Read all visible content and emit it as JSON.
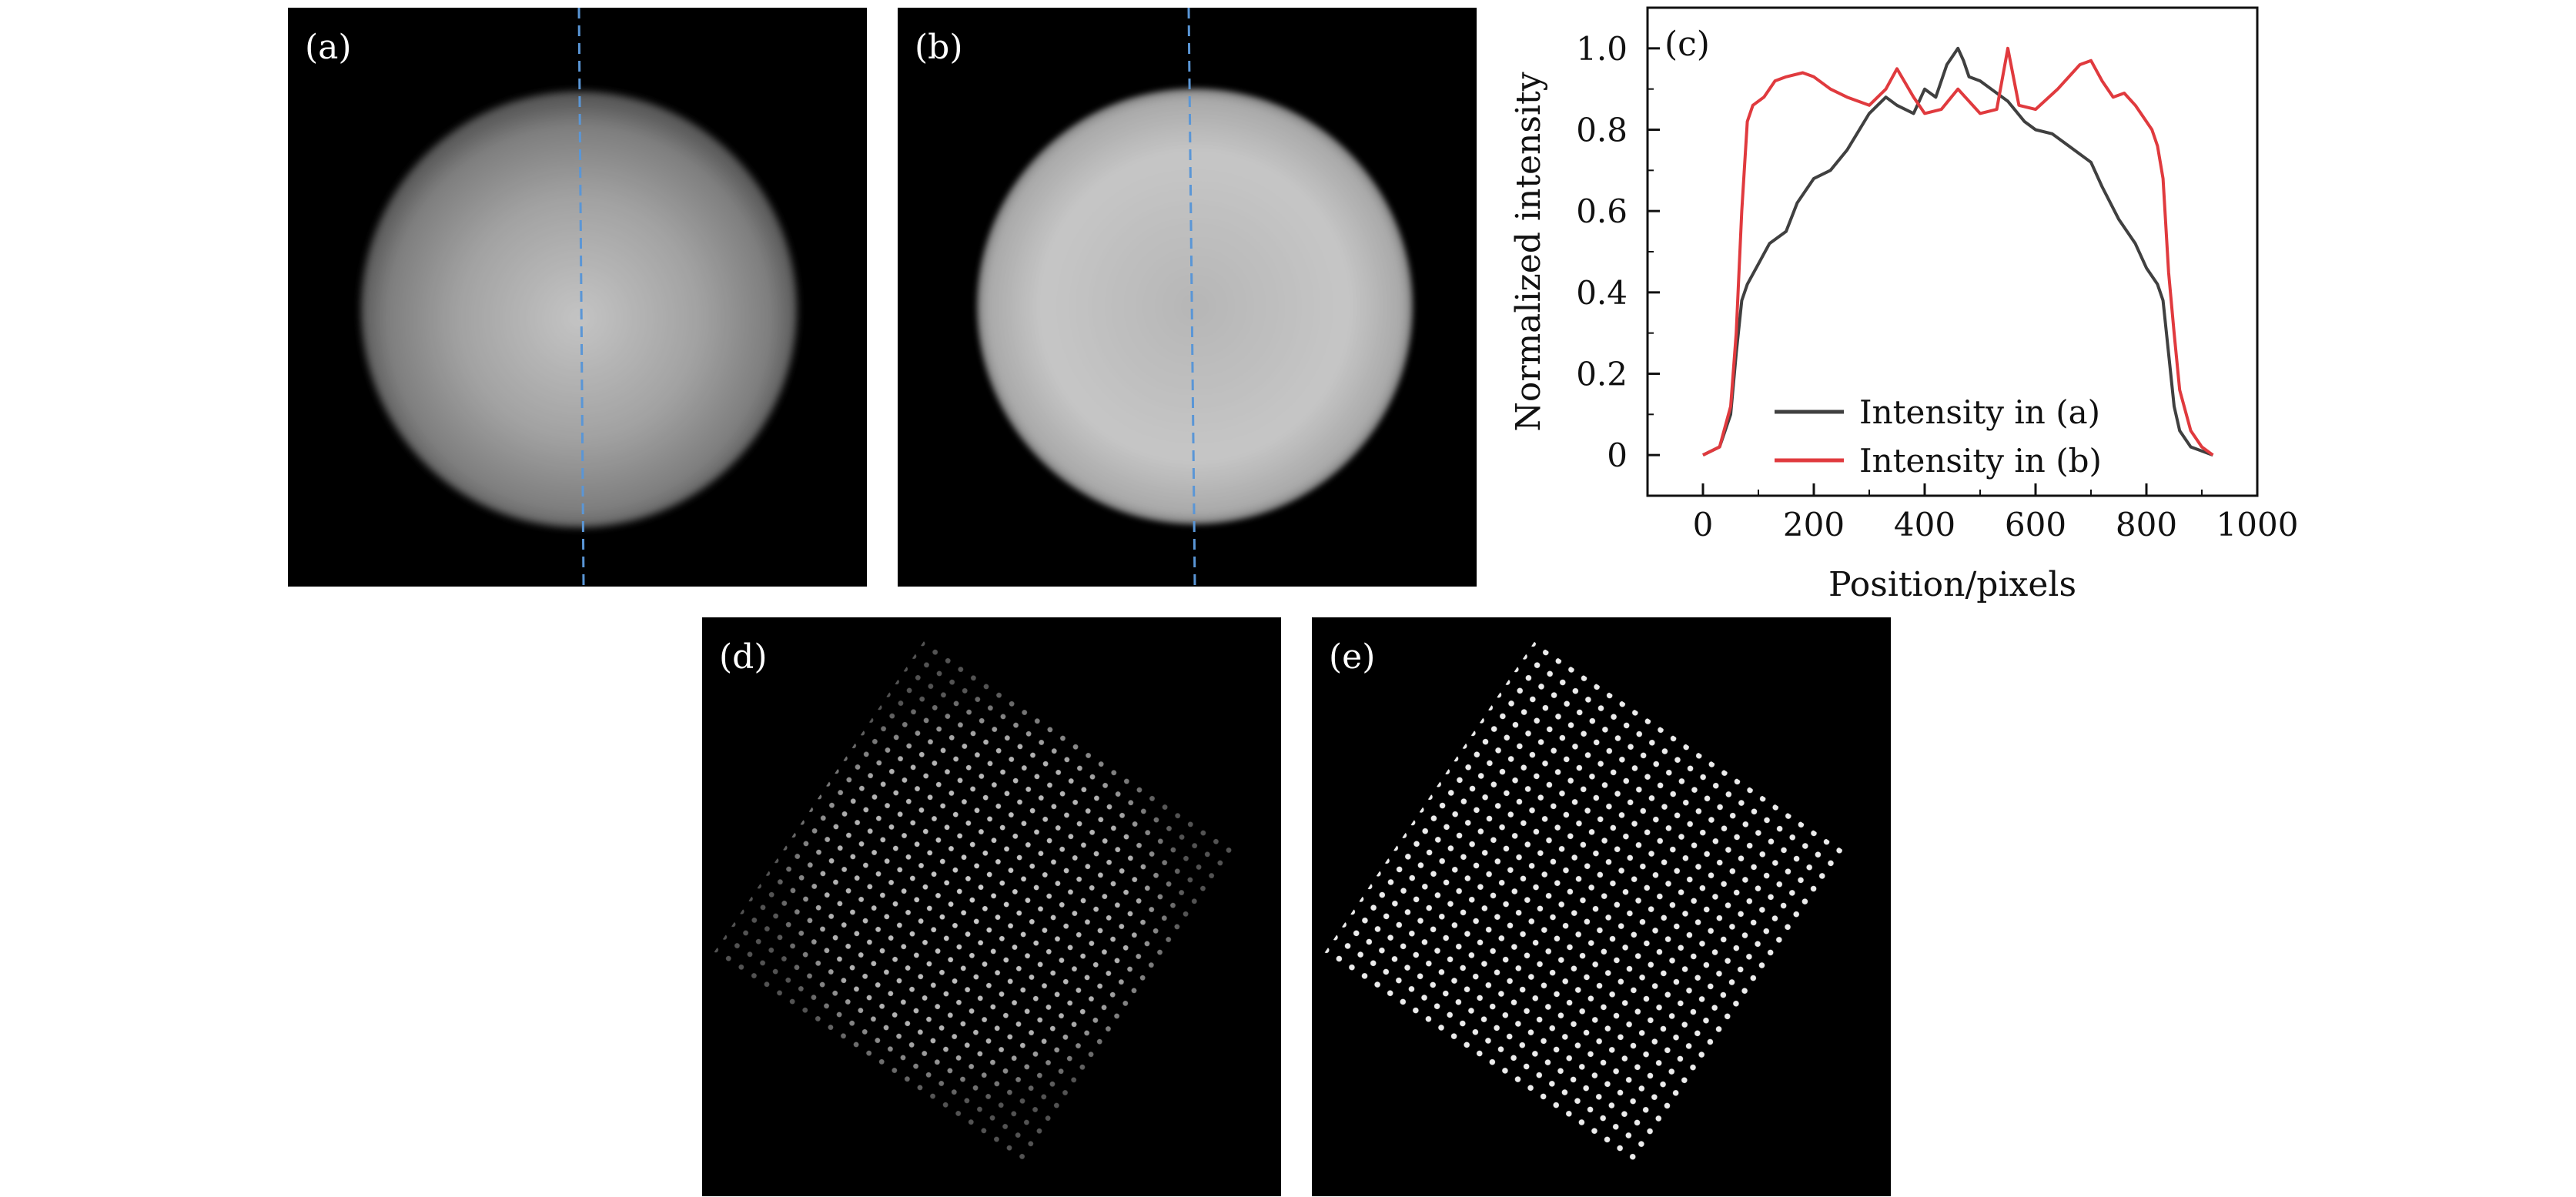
{
  "panels": {
    "a": {
      "label": "(a)"
    },
    "b": {
      "label": "(b)"
    },
    "d": {
      "label": "(d)"
    },
    "e": {
      "label": "(e)"
    }
  },
  "colors": {
    "line_marker": "#5a96d6",
    "series_a": "#404040",
    "series_b": "#e03a3e",
    "background": "#000000"
  },
  "chart_data": {
    "type": "line",
    "panel_label": "(c)",
    "xlabel": "Position/pixels",
    "ylabel": "Normalized intensity",
    "xlim": [
      -100,
      1000
    ],
    "ylim": [
      -0.1,
      1.1
    ],
    "xticks": [
      0,
      200,
      400,
      600,
      800,
      1000
    ],
    "xtick_labels": [
      "0",
      "200",
      "400",
      "600",
      "800",
      "1000"
    ],
    "yticks": [
      0,
      0.2,
      0.4,
      0.6,
      0.8,
      1.0
    ],
    "ytick_labels": [
      "0",
      "0.2",
      "0.4",
      "0.6",
      "0.8",
      "1.0"
    ],
    "grid": false,
    "legend_position": "bottom-center",
    "series": [
      {
        "name": "Intensity in (a)",
        "color": "#404040",
        "x": [
          0,
          30,
          50,
          60,
          70,
          80,
          100,
          120,
          150,
          170,
          200,
          230,
          260,
          300,
          330,
          350,
          380,
          400,
          420,
          440,
          460,
          470,
          480,
          500,
          520,
          550,
          580,
          600,
          630,
          660,
          700,
          720,
          750,
          780,
          800,
          820,
          830,
          840,
          850,
          860,
          880,
          900,
          920
        ],
        "y": [
          0,
          0.02,
          0.1,
          0.25,
          0.38,
          0.42,
          0.47,
          0.52,
          0.55,
          0.62,
          0.68,
          0.7,
          0.75,
          0.84,
          0.88,
          0.86,
          0.84,
          0.9,
          0.88,
          0.96,
          1.0,
          0.97,
          0.93,
          0.92,
          0.9,
          0.87,
          0.82,
          0.8,
          0.79,
          0.76,
          0.72,
          0.66,
          0.58,
          0.52,
          0.46,
          0.42,
          0.38,
          0.25,
          0.12,
          0.06,
          0.02,
          0.01,
          0
        ]
      },
      {
        "name": "Intensity in (b)",
        "color": "#e03a3e",
        "x": [
          0,
          30,
          50,
          60,
          70,
          80,
          90,
          110,
          130,
          150,
          180,
          200,
          230,
          260,
          300,
          330,
          350,
          380,
          400,
          430,
          460,
          500,
          530,
          550,
          570,
          600,
          640,
          680,
          700,
          720,
          740,
          760,
          780,
          800,
          810,
          820,
          830,
          840,
          850,
          860,
          880,
          900,
          920
        ],
        "y": [
          0,
          0.02,
          0.12,
          0.3,
          0.6,
          0.82,
          0.86,
          0.88,
          0.92,
          0.93,
          0.94,
          0.93,
          0.9,
          0.88,
          0.86,
          0.9,
          0.95,
          0.88,
          0.84,
          0.85,
          0.9,
          0.84,
          0.85,
          1.0,
          0.86,
          0.85,
          0.9,
          0.96,
          0.97,
          0.92,
          0.88,
          0.89,
          0.86,
          0.82,
          0.8,
          0.76,
          0.68,
          0.45,
          0.3,
          0.16,
          0.06,
          0.02,
          0
        ]
      }
    ]
  }
}
